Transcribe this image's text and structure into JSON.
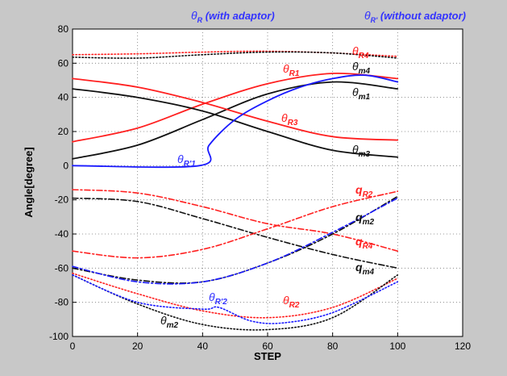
{
  "chart_data": {
    "type": "line",
    "xlabel": "STEP",
    "ylabel": "Angle[degree]",
    "xlim": [
      0,
      120
    ],
    "ylim": [
      -100,
      80
    ],
    "xticks": [
      0,
      20,
      40,
      60,
      80,
      100,
      120
    ],
    "yticks": [
      -100,
      -80,
      -60,
      -40,
      -20,
      0,
      20,
      40,
      60,
      80
    ],
    "grid": true,
    "legend_texts": [
      {
        "greek": "θ",
        "sub": "R",
        "text": " (with adaptor)",
        "color": "#3333ff"
      },
      {
        "greek": "θ",
        "sub": "R'",
        "text": " (without adaptor)",
        "color": "#3333ff"
      }
    ],
    "annotations": [
      {
        "greek": "θ",
        "sub": "R4",
        "color": "#ff2020"
      },
      {
        "greek": "θ",
        "sub": "m4",
        "color": "#111111"
      },
      {
        "greek": "θ",
        "sub": "R1",
        "color": "#ff2020"
      },
      {
        "greek": "θ",
        "sub": "m1",
        "color": "#111111"
      },
      {
        "greek": "θ",
        "sub": "R3",
        "color": "#ff2020"
      },
      {
        "greek": "θ",
        "sub": "m3",
        "color": "#111111"
      },
      {
        "greek": "θ",
        "sub": "R'1",
        "color": "#3333ff"
      },
      {
        "greek": "q",
        "sub": "R2",
        "color": "#ff2020"
      },
      {
        "greek": "q",
        "sub": "m2",
        "color": "#111111"
      },
      {
        "greek": "q",
        "sub": "R4",
        "color": "#ff2020"
      },
      {
        "greek": "q",
        "sub": "m4",
        "color": "#111111"
      },
      {
        "greek": "θ",
        "sub": "R'2",
        "color": "#3333ff"
      },
      {
        "greek": "θ",
        "sub": "R2",
        "color": "#ff2020"
      },
      {
        "greek": "θ",
        "sub": "m2",
        "color": "#111111"
      }
    ],
    "series": [
      {
        "key": "thR4",
        "color": "#ff2020",
        "style": "dotted",
        "width": 1.6,
        "x": [
          0,
          20,
          40,
          60,
          80,
          100
        ],
        "y": [
          65,
          65.5,
          66.5,
          67,
          66,
          64
        ]
      },
      {
        "key": "thm4",
        "color": "#111111",
        "style": "dotted",
        "width": 1.6,
        "x": [
          0,
          20,
          40,
          60,
          80,
          100
        ],
        "y": [
          63.5,
          63,
          65,
          66.5,
          66,
          63
        ]
      },
      {
        "key": "thR1",
        "color": "#ff2020",
        "style": "solid",
        "width": 1.8,
        "x": [
          0,
          20,
          40,
          60,
          80,
          100
        ],
        "y": [
          14,
          22,
          36,
          48,
          54,
          51
        ]
      },
      {
        "key": "thm1",
        "color": "#111111",
        "style": "solid",
        "width": 1.8,
        "x": [
          0,
          20,
          40,
          60,
          80,
          100
        ],
        "y": [
          4,
          12,
          27,
          42,
          49,
          45
        ]
      },
      {
        "key": "thR3",
        "color": "#ff2020",
        "style": "solid",
        "width": 1.8,
        "x": [
          0,
          20,
          40,
          60,
          80,
          100
        ],
        "y": [
          51,
          46,
          37,
          26,
          17,
          15
        ]
      },
      {
        "key": "thm3",
        "color": "#111111",
        "style": "solid",
        "width": 1.8,
        "x": [
          0,
          20,
          40,
          60,
          80,
          100
        ],
        "y": [
          45,
          40,
          32,
          20,
          9,
          5
        ]
      },
      {
        "key": "thRp1",
        "color": "#1a1aff",
        "style": "solid",
        "width": 1.8,
        "x": [
          0,
          39,
          42,
          50,
          60,
          70,
          80,
          90,
          100
        ],
        "y": [
          0,
          0,
          12,
          27,
          38,
          46,
          51,
          53,
          49
        ]
      },
      {
        "key": "qR2",
        "color": "#ff2020",
        "style": "dashdot",
        "width": 1.6,
        "x": [
          0,
          20,
          40,
          60,
          80,
          100
        ],
        "y": [
          -14,
          -16,
          -24,
          -34,
          -40,
          -50
        ]
      },
      {
        "key": "qm2",
        "color": "#111111",
        "style": "dashdot",
        "width": 1.6,
        "x": [
          0,
          20,
          40,
          60,
          80,
          100
        ],
        "y": [
          -19,
          -21,
          -31,
          -42,
          -52,
          -60
        ]
      },
      {
        "key": "qR4",
        "color": "#ff2020",
        "style": "dashdot",
        "width": 1.6,
        "x": [
          0,
          20,
          40,
          60,
          80,
          100
        ],
        "y": [
          -50,
          -54,
          -49,
          -37,
          -24,
          -15
        ]
      },
      {
        "key": "qm4",
        "color": "#111111",
        "style": "dashdot",
        "width": 1.6,
        "x": [
          0,
          20,
          40,
          60,
          80,
          100
        ],
        "y": [
          -60,
          -67,
          -68,
          -57,
          -40,
          -18
        ]
      },
      {
        "key": "qRp",
        "color": "#1a1aff",
        "style": "dashdot",
        "width": 1.6,
        "x": [
          0,
          20,
          40,
          60,
          80,
          100
        ],
        "y": [
          -59,
          -68,
          -68,
          -57,
          -39,
          -19
        ]
      },
      {
        "key": "thR2",
        "color": "#ff2020",
        "style": "dotted",
        "width": 1.6,
        "x": [
          0,
          20,
          40,
          60,
          80,
          100
        ],
        "y": [
          -63,
          -75,
          -85,
          -89,
          -83,
          -66
        ]
      },
      {
        "key": "thm2",
        "color": "#111111",
        "style": "dotted",
        "width": 1.6,
        "x": [
          0,
          20,
          40,
          60,
          80,
          100
        ],
        "y": [
          -64,
          -81,
          -93,
          -96,
          -89,
          -64
        ]
      },
      {
        "key": "thRp2",
        "color": "#1a1aff",
        "style": "dotted",
        "width": 1.6,
        "x": [
          0,
          20,
          40,
          45,
          55,
          65,
          80,
          100
        ],
        "y": [
          -64,
          -80,
          -84,
          -83,
          -91,
          -92,
          -86,
          -68
        ]
      }
    ]
  }
}
